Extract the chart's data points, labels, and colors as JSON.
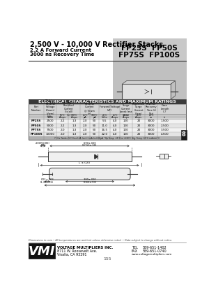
{
  "title_main": "2,500 V - 10,000 V Rectifier Stacks",
  "title_sub1": "2.2 A Forward Current",
  "title_sub2": "3000 ns Recovery Time",
  "table_title": "ELECTRICAL CHARACTERISTICS AND MAXIMUM RATINGS",
  "table_data": [
    [
      "FP25S",
      "2500",
      "2.2",
      "1.3",
      "2.0",
      "50",
      "5.5",
      "4.0",
      "120",
      "20",
      "3000",
      "1.500"
    ],
    [
      "FP50S",
      "5000",
      "2.2",
      "1.3",
      "2.0",
      "50",
      "11.0",
      "4.0",
      "120",
      "20",
      "3000",
      "2.500"
    ],
    [
      "FP75S",
      "7500",
      "2.0",
      "1.3",
      "2.0",
      "50",
      "16.5",
      "4.0",
      "120",
      "20",
      "3000",
      "3.500"
    ],
    [
      "FP100S",
      "10000",
      "2.0",
      "1.3",
      "2.0",
      "50",
      "22.0",
      "4.0",
      "120",
      "20",
      "3000",
      "4.500"
    ]
  ],
  "footnote": "(*) For Tamb= 55°C Io=2.2A, Io=1.1 mA, Ir=0.05μA  *Op Temp: -55°C to +130°C  Stg. Temp: -55°C to Amb+°C",
  "dim_note": "Dimensions in: mm • All temperatures are ambient unless otherwise noted. • Data subject to change without notice.",
  "company": "VOLTAGE MULTIPLIERS INC.",
  "addr1": "8711 W. Roosevelt Ave.",
  "addr2": "Visalia, CA 93291",
  "tel_label": "TEL",
  "tel_num": "559-651-1402",
  "fax_label": "FAX",
  "fax_num": "559-651-0740",
  "web": "www.voltagemultipliers.com",
  "page": "155",
  "section": "8",
  "bg_color": "#ffffff",
  "dark_bg": "#3a3a3a",
  "gray_bg": "#c8c8c8",
  "header_bg": "#d4d4d4",
  "row0_bg": "#f2f2f2",
  "row1_bg": "#e4e4e4",
  "fn_bg": "#b0b0b0",
  "sec_bg": "#1a1a1a"
}
